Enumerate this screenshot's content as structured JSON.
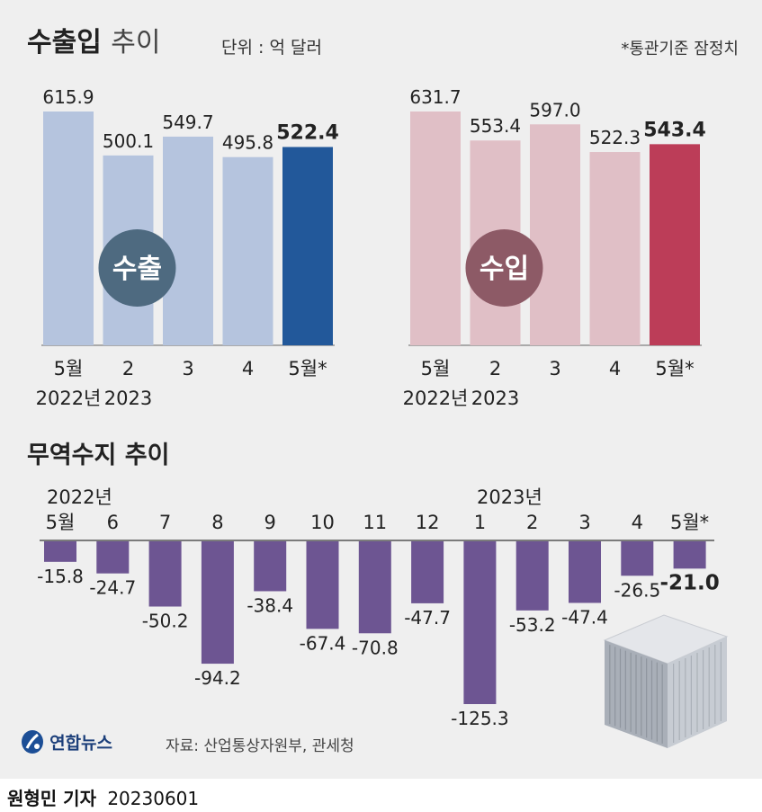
{
  "header": {
    "title_bold": "수출입",
    "title_light": "추이",
    "unit": "단위 : 억 달러",
    "note": "*통관기준 잠정치"
  },
  "trade_section": {
    "title": "무역수지 추이",
    "year_2022": "2022년",
    "year_2023": "2023년"
  },
  "source": "자료: 산업통상자원부, 관세청",
  "logo": "연합뉴스",
  "footer": {
    "reporter": "원형민 기자",
    "date": "20230601"
  },
  "colors": {
    "export_light": "#b5c4de",
    "export_highlight": "#22589a",
    "export_badge": "#4e6a80",
    "import_light": "#e0bfc6",
    "import_highlight": "#bc3d58",
    "import_badge": "#8d5a66",
    "balance_bar": "#6d5592"
  },
  "chart_data": [
    {
      "type": "bar",
      "name": "export",
      "badge": "수출",
      "categories": [
        [
          "5월",
          "2022년"
        ],
        [
          "2",
          "2023"
        ],
        [
          "3",
          ""
        ],
        [
          "4",
          ""
        ],
        [
          "5월*",
          ""
        ]
      ],
      "values": [
        615.9,
        500.1,
        549.7,
        495.8,
        522.4
      ],
      "labels": [
        "615.9",
        "500.1",
        "549.7",
        "495.8",
        "522.4"
      ],
      "highlight_index": 4,
      "ylim": [
        0,
        615.9
      ]
    },
    {
      "type": "bar",
      "name": "import",
      "badge": "수입",
      "categories": [
        [
          "5월",
          "2022년"
        ],
        [
          "2",
          "2023"
        ],
        [
          "3",
          ""
        ],
        [
          "4",
          ""
        ],
        [
          "5월*",
          ""
        ]
      ],
      "values": [
        631.7,
        553.4,
        597.0,
        522.3,
        543.4
      ],
      "labels": [
        "631.7",
        "553.4",
        "597.0",
        "522.3",
        "543.4"
      ],
      "highlight_index": 4,
      "ylim": [
        0,
        631.7
      ]
    },
    {
      "type": "bar",
      "name": "trade_balance",
      "title": "무역수지 추이",
      "categories": [
        "5월",
        "6",
        "7",
        "8",
        "9",
        "10",
        "11",
        "12",
        "1",
        "2",
        "3",
        "4",
        "5월*"
      ],
      "values": [
        -15.8,
        -24.7,
        -50.2,
        -94.2,
        -38.4,
        -67.4,
        -70.8,
        -47.7,
        -125.3,
        -53.2,
        -47.4,
        -26.5,
        -21.0
      ],
      "labels": [
        "-15.8",
        "-24.7",
        "-50.2",
        "-94.2",
        "-38.4",
        "-67.4",
        "-70.8",
        "-47.7",
        "-125.3",
        "-53.2",
        "-47.4",
        "-26.5",
        "-21.0"
      ],
      "highlight_index": 12,
      "ylim": [
        -125.3,
        0
      ]
    }
  ]
}
